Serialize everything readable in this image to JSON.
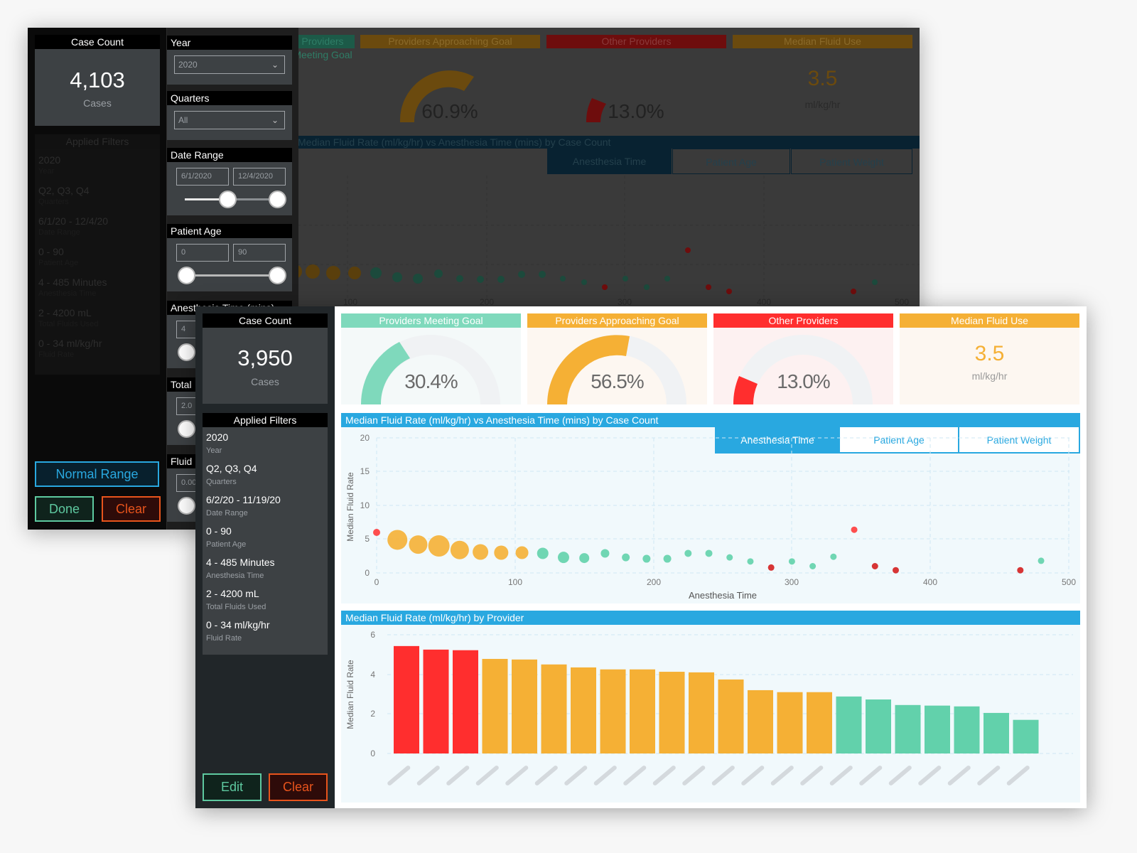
{
  "back_dashboard": {
    "case_count": {
      "header": "Case Count",
      "value": "4,103",
      "unit": "Cases"
    },
    "applied_filters": {
      "header": "Applied Filters",
      "items": [
        {
          "value": "2020",
          "label": "Year"
        },
        {
          "value": "Q2, Q3, Q4",
          "label": "Quarters"
        },
        {
          "value": "6/1/20 - 12/4/20",
          "label": "Date Range"
        },
        {
          "value": "0 - 90",
          "label": "Patient Age"
        },
        {
          "value": "4 - 485 Minutes",
          "label": "Anesthesia Time"
        },
        {
          "value": "2 - 4200 mL",
          "label": "Total Fluids Used"
        },
        {
          "value": "0 - 34 ml/kg/hr",
          "label": "Fluid Rate"
        }
      ]
    },
    "buttons": {
      "normal_range": "Normal Range",
      "done": "Done",
      "clear": "Clear"
    },
    "filters": {
      "year": {
        "label": "Year",
        "value": "2020"
      },
      "quarters": {
        "label": "Quarters",
        "value": "All"
      },
      "date_range": {
        "label": "Date Range",
        "from": "6/1/2020",
        "to": "12/4/2020"
      },
      "patient_age": {
        "label": "Patient Age",
        "from": "0",
        "to": "90"
      },
      "anesthesia_time": {
        "label": "Anesthesia Time (mins)",
        "from": "4"
      },
      "total_fluids": {
        "label": "Total",
        "from": "2.0"
      },
      "fluid_rate": {
        "label": "Fluid",
        "from": "0.00"
      }
    },
    "kpis": [
      {
        "title": "Providers Meeting Goal",
        "color": "#1c5a48"
      },
      {
        "title": "Providers Approaching Goal",
        "value": "60.9%",
        "color": "#6b4a0e"
      },
      {
        "title": "Other Providers",
        "value": "13.0%",
        "color": "#6e0d0d"
      },
      {
        "title": "Median Fluid Use",
        "value": "3.5",
        "unit": "ml/kg/hr",
        "color": "#6b4a0e"
      }
    ],
    "chart_title": "Median Fluid Rate (ml/kg/hr) vs Anesthesia Time (mins) by Case Count",
    "tabs": [
      "Anesthesia Time",
      "Patient Age",
      "Patient Weight"
    ],
    "x_ticks": [
      "100",
      "200",
      "300",
      "400",
      "500"
    ]
  },
  "front_dashboard": {
    "case_count": {
      "header": "Case Count",
      "value": "3,950",
      "unit": "Cases"
    },
    "applied_filters": {
      "header": "Applied Filters",
      "items": [
        {
          "value": "2020",
          "label": "Year"
        },
        {
          "value": "Q2, Q3, Q4",
          "label": "Quarters"
        },
        {
          "value": "6/2/20 - 11/19/20",
          "label": "Date Range"
        },
        {
          "value": "0 - 90",
          "label": "Patient Age"
        },
        {
          "value": "4 - 485 Minutes",
          "label": "Anesthesia Time"
        },
        {
          "value": "2 - 4200 mL",
          "label": "Total Fluids Used"
        },
        {
          "value": "0 - 34 ml/kg/hr",
          "label": "Fluid Rate"
        }
      ]
    },
    "buttons": {
      "edit": "Edit",
      "clear": "Clear"
    },
    "kpis": [
      {
        "title": "Providers Meeting Goal",
        "value": "30.4%",
        "percent": 30.4,
        "color": "#7fd9bc",
        "bg": "#f4f9f9"
      },
      {
        "title": "Providers Approaching Goal",
        "value": "56.5%",
        "percent": 56.5,
        "color": "#f5b035",
        "bg": "#fdf7f1"
      },
      {
        "title": "Other Providers",
        "value": "13.0%",
        "percent": 13.0,
        "color": "#ff2e2e",
        "bg": "#fdf1f1"
      },
      {
        "title": "Median Fluid Use",
        "value": "3.5",
        "unit": "ml/kg/hr",
        "color": "#f5b035",
        "bg": "#fdf7f1"
      }
    ],
    "scatter_panel": {
      "title": "Median Fluid Rate (ml/kg/hr) vs Anesthesia Time (mins) by Case Count",
      "tabs": [
        {
          "label": "Anesthesia Time",
          "active": true
        },
        {
          "label": "Patient Age",
          "active": false
        },
        {
          "label": "Patient Weight",
          "active": false
        }
      ]
    },
    "bar_panel": {
      "title": "Median Fluid Rate (ml/kg/hr) by Provider"
    }
  },
  "colors": {
    "blue": "#29a8e0",
    "green": "#62d1ab",
    "orange": "#f5b035",
    "red": "#ff2e2e",
    "dark_red": "#d41f1f"
  },
  "chart_data": [
    {
      "type": "scatter",
      "title": "Median Fluid Rate (ml/kg/hr) vs Anesthesia Time (mins) by Case Count",
      "xlabel": "Anesthesia Time",
      "ylabel": "Median Fluid Rate",
      "xlim": [
        0,
        500
      ],
      "ylim": [
        0,
        20
      ],
      "x_ticks": [
        0,
        100,
        200,
        300,
        400,
        500
      ],
      "y_ticks": [
        0,
        5,
        10,
        15,
        20
      ],
      "grid": true,
      "points": [
        {
          "x": 0,
          "y": 6.0,
          "size": 5,
          "color": "#ff3b3b"
        },
        {
          "x": 15,
          "y": 4.9,
          "size": 14,
          "color": "#f5b035"
        },
        {
          "x": 30,
          "y": 4.2,
          "size": 13,
          "color": "#f5b035"
        },
        {
          "x": 45,
          "y": 4.0,
          "size": 15,
          "color": "#f5b035"
        },
        {
          "x": 60,
          "y": 3.4,
          "size": 13,
          "color": "#f5b035"
        },
        {
          "x": 75,
          "y": 3.1,
          "size": 11,
          "color": "#f5b035"
        },
        {
          "x": 90,
          "y": 3.0,
          "size": 10,
          "color": "#f5b035"
        },
        {
          "x": 105,
          "y": 3.0,
          "size": 9,
          "color": "#f5b035"
        },
        {
          "x": 120,
          "y": 2.9,
          "size": 8,
          "color": "#62d1ab"
        },
        {
          "x": 135,
          "y": 2.3,
          "size": 8,
          "color": "#62d1ab"
        },
        {
          "x": 150,
          "y": 2.2,
          "size": 7,
          "color": "#62d1ab"
        },
        {
          "x": 165,
          "y": 2.9,
          "size": 6,
          "color": "#62d1ab"
        },
        {
          "x": 180,
          "y": 2.3,
          "size": 5.5,
          "color": "#62d1ab"
        },
        {
          "x": 195,
          "y": 2.1,
          "size": 5.5,
          "color": "#62d1ab"
        },
        {
          "x": 210,
          "y": 2.1,
          "size": 5.5,
          "color": "#62d1ab"
        },
        {
          "x": 225,
          "y": 2.9,
          "size": 5,
          "color": "#62d1ab"
        },
        {
          "x": 240,
          "y": 2.9,
          "size": 5,
          "color": "#62d1ab"
        },
        {
          "x": 255,
          "y": 2.3,
          "size": 4.5,
          "color": "#62d1ab"
        },
        {
          "x": 270,
          "y": 1.7,
          "size": 4.5,
          "color": "#62d1ab"
        },
        {
          "x": 285,
          "y": 0.8,
          "size": 4.5,
          "color": "#d41f1f"
        },
        {
          "x": 300,
          "y": 1.7,
          "size": 4.5,
          "color": "#62d1ab"
        },
        {
          "x": 315,
          "y": 1.0,
          "size": 4.5,
          "color": "#62d1ab"
        },
        {
          "x": 330,
          "y": 2.4,
          "size": 4.5,
          "color": "#62d1ab"
        },
        {
          "x": 345,
          "y": 6.4,
          "size": 4.5,
          "color": "#ff3b3b"
        },
        {
          "x": 360,
          "y": 1.0,
          "size": 4.5,
          "color": "#d41f1f"
        },
        {
          "x": 375,
          "y": 0.4,
          "size": 4.5,
          "color": "#d41f1f"
        },
        {
          "x": 465,
          "y": 0.4,
          "size": 4.5,
          "color": "#d41f1f"
        },
        {
          "x": 480,
          "y": 1.8,
          "size": 4.5,
          "color": "#62d1ab"
        }
      ]
    },
    {
      "type": "bar",
      "title": "Median Fluid Rate (ml/kg/hr) by Provider",
      "xlabel": "",
      "ylabel": "Median Fluid Rate",
      "ylim": [
        0,
        6
      ],
      "y_ticks": [
        0,
        2,
        4,
        6
      ],
      "grid": true,
      "categories": [
        "Provider 1",
        "Provider 2",
        "Provider 3",
        "Provider 4",
        "Provider 5",
        "Provider 6",
        "Provider 7",
        "Provider 8",
        "Provider 9",
        "Provider 10",
        "Provider 11",
        "Provider 12",
        "Provider 13",
        "Provider 14",
        "Provider 15",
        "Provider 16",
        "Provider 17",
        "Provider 18",
        "Provider 19",
        "Provider 20",
        "Provider 21",
        "Provider 22"
      ],
      "values": [
        5.43,
        5.25,
        5.22,
        4.78,
        4.75,
        4.5,
        4.35,
        4.25,
        4.25,
        4.13,
        4.1,
        3.74,
        3.2,
        3.1,
        3.1,
        2.88,
        2.73,
        2.45,
        2.42,
        2.38,
        2.05,
        1.7
      ],
      "colors": [
        "#ff2e2e",
        "#ff2e2e",
        "#ff2e2e",
        "#f5b035",
        "#f5b035",
        "#f5b035",
        "#f5b035",
        "#f5b035",
        "#f5b035",
        "#f5b035",
        "#f5b035",
        "#f5b035",
        "#f5b035",
        "#f5b035",
        "#f5b035",
        "#62d1ab",
        "#62d1ab",
        "#62d1ab",
        "#62d1ab",
        "#62d1ab",
        "#62d1ab",
        "#62d1ab"
      ],
      "note": "x-axis provider names are blurred in the screenshot"
    }
  ]
}
